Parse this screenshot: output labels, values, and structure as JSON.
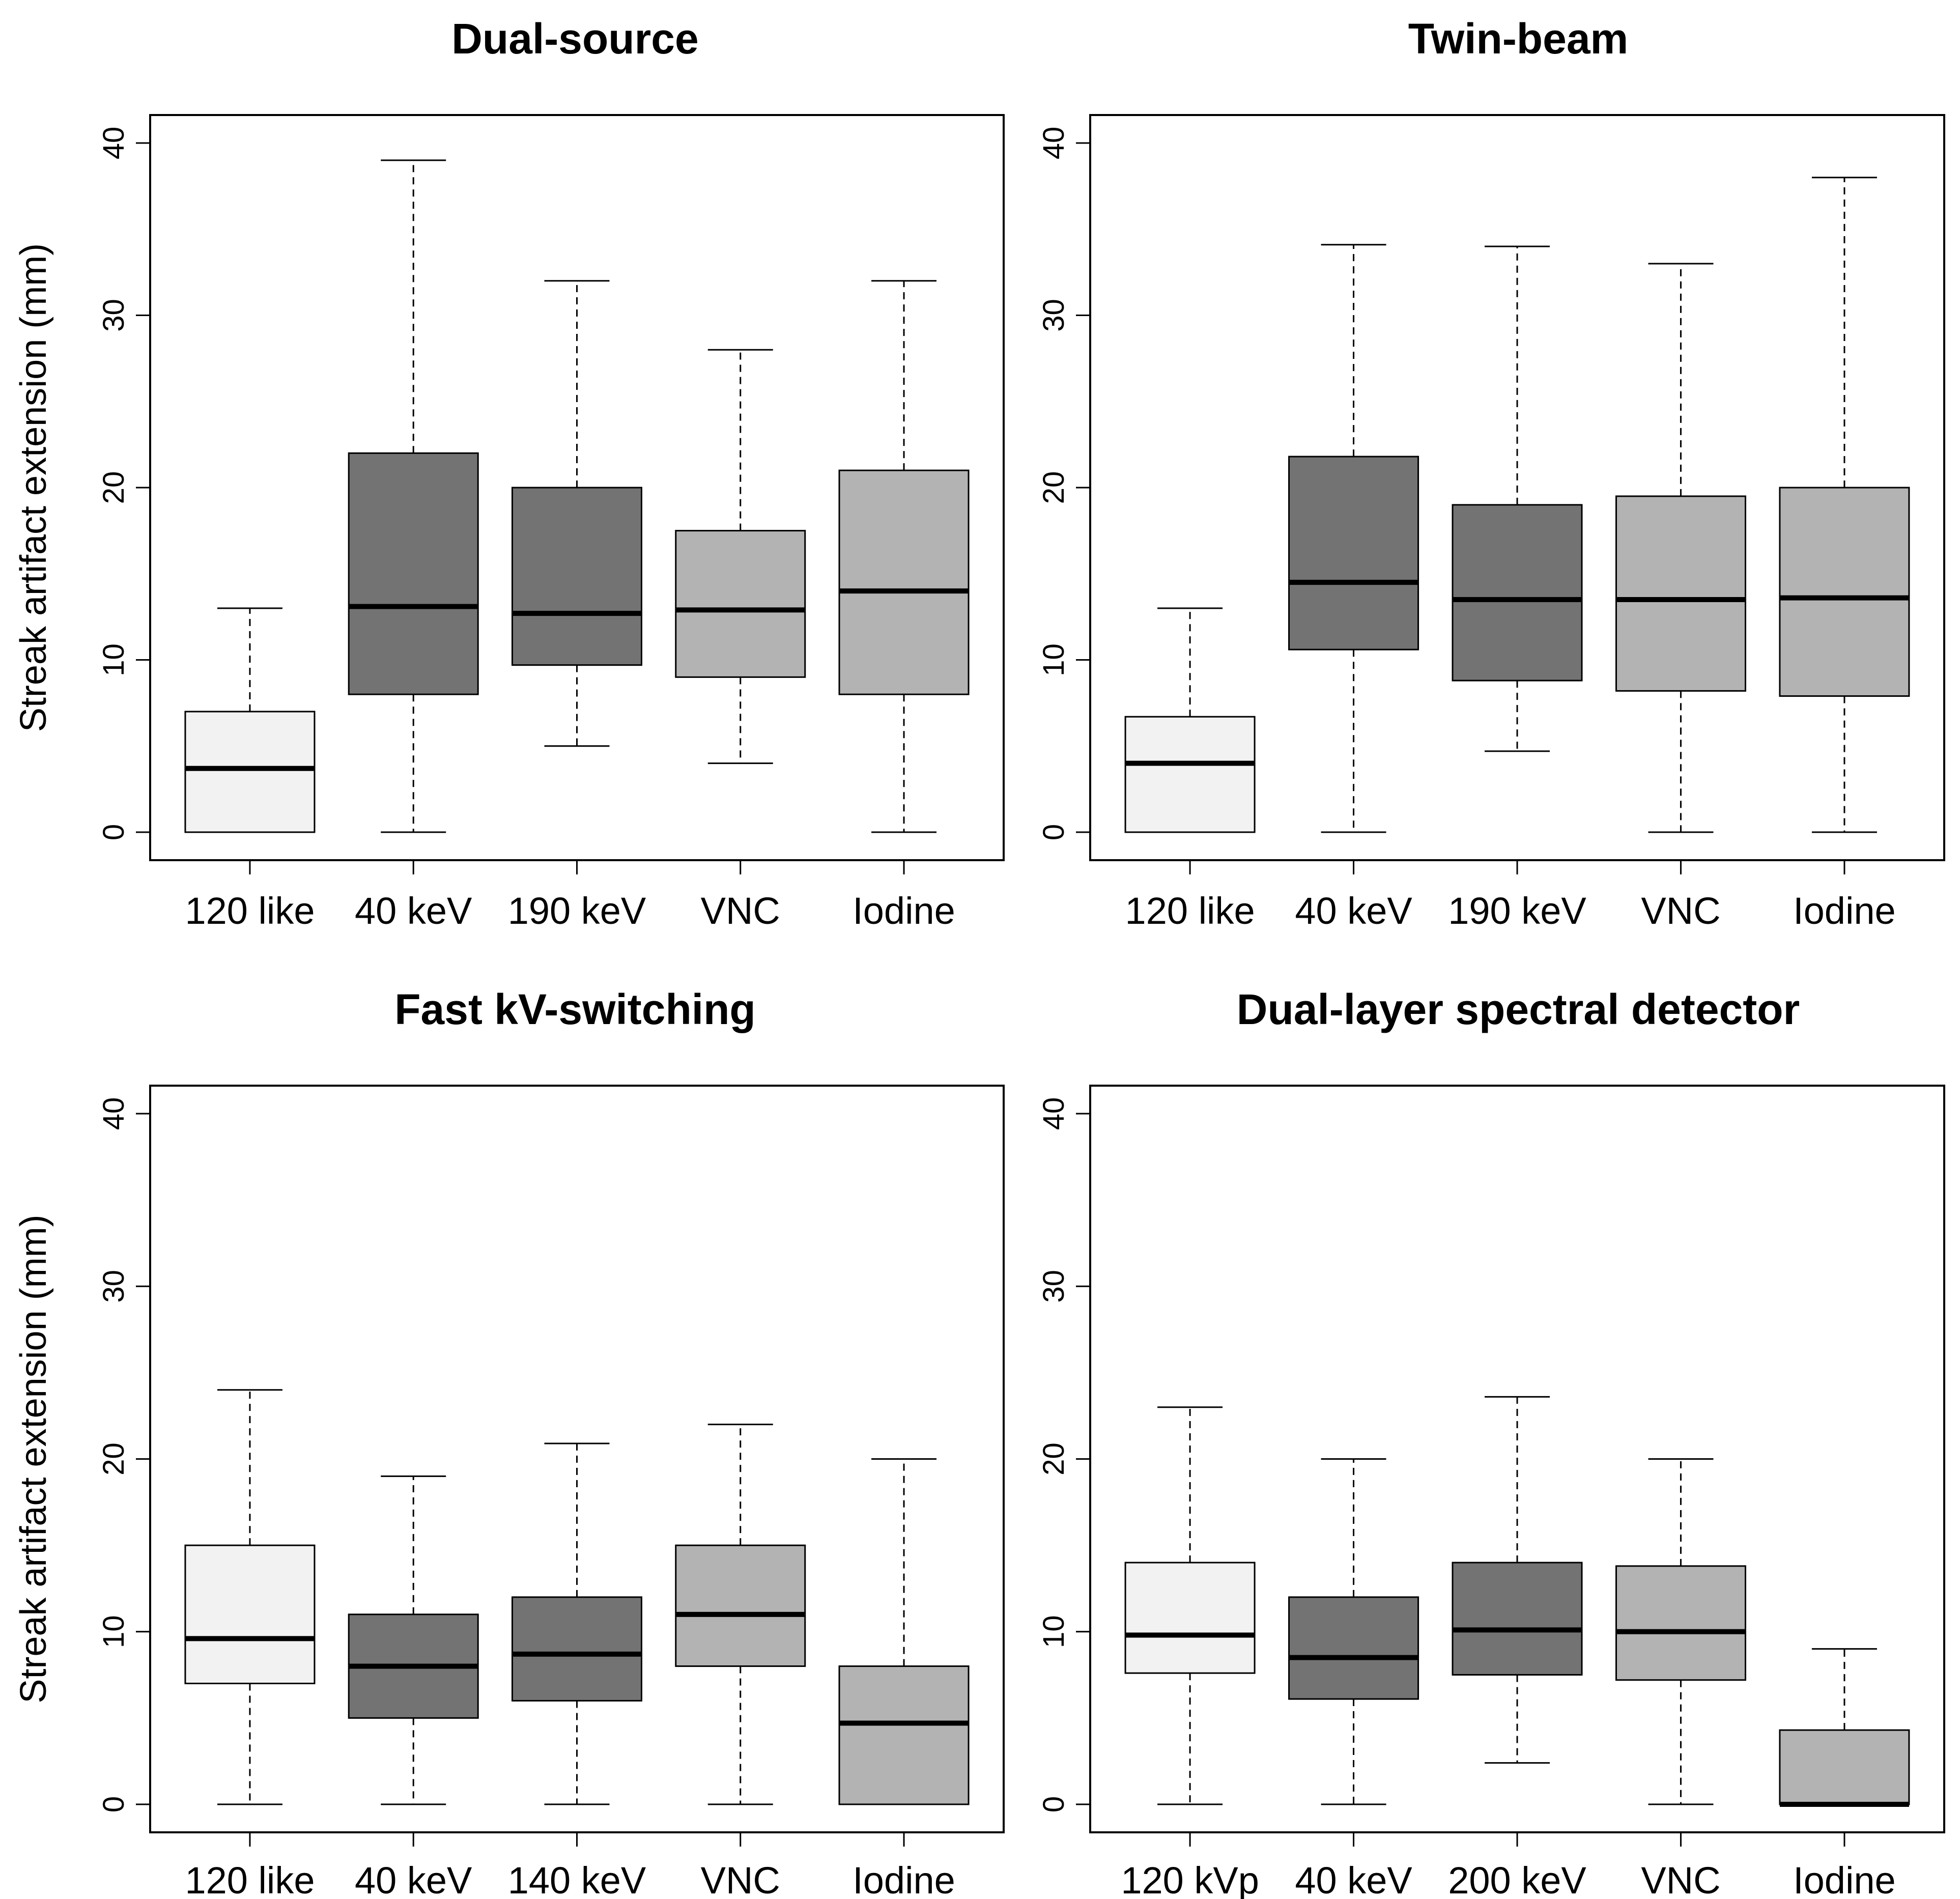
{
  "figure": {
    "ylabel": "Streak artifact extension (mm)",
    "yticks": [
      "0",
      "10",
      "20",
      "30",
      "40"
    ]
  },
  "chart_data": [
    {
      "type": "box",
      "title": "Dual-source",
      "ylabel": "Streak artifact extension (mm)",
      "ylim": [
        0,
        40
      ],
      "yticks": [
        0,
        10,
        20,
        30,
        40
      ],
      "categories": [
        "120 like",
        "40 keV",
        "190 keV",
        "VNC",
        "Iodine"
      ],
      "fill_colors": [
        "#f2f2f2",
        "#737373",
        "#737373",
        "#b3b3b3",
        "#b3b3b3"
      ],
      "boxes": [
        {
          "min": 0,
          "q1": 0,
          "median": 3.7,
          "q3": 7,
          "max": 13
        },
        {
          "min": 0,
          "q1": 8,
          "median": 13.1,
          "q3": 22,
          "max": 39
        },
        {
          "min": 5,
          "q1": 9.7,
          "median": 12.7,
          "q3": 20,
          "max": 32
        },
        {
          "min": 4,
          "q1": 9,
          "median": 12.9,
          "q3": 17.5,
          "max": 28
        },
        {
          "min": 0,
          "q1": 8,
          "median": 14,
          "q3": 21,
          "max": 32
        }
      ]
    },
    {
      "type": "box",
      "title": "Twin-beam",
      "ylabel": "",
      "ylim": [
        0,
        40
      ],
      "yticks": [
        0,
        10,
        20,
        30,
        40
      ],
      "categories": [
        "120 like",
        "40 keV",
        "190 keV",
        "VNC",
        "Iodine"
      ],
      "fill_colors": [
        "#f2f2f2",
        "#737373",
        "#737373",
        "#b3b3b3",
        "#b3b3b3"
      ],
      "boxes": [
        {
          "min": 0,
          "q1": 0,
          "median": 4,
          "q3": 6.7,
          "max": 13
        },
        {
          "min": 0,
          "q1": 10.6,
          "median": 14.5,
          "q3": 21.8,
          "max": 34.1
        },
        {
          "min": 4.7,
          "q1": 8.8,
          "median": 13.5,
          "q3": 19,
          "max": 34
        },
        {
          "min": 0,
          "q1": 8.2,
          "median": 13.5,
          "q3": 19.5,
          "max": 33
        },
        {
          "min": 0,
          "q1": 7.9,
          "median": 13.6,
          "q3": 20,
          "max": 38
        }
      ]
    },
    {
      "type": "box",
      "title": "Fast kV-switching",
      "ylabel": "Streak artifact extension (mm)",
      "ylim": [
        0,
        40
      ],
      "yticks": [
        0,
        10,
        20,
        30,
        40
      ],
      "categories": [
        "120 like",
        "40 keV",
        "140 keV",
        "VNC",
        "Iodine"
      ],
      "fill_colors": [
        "#f2f2f2",
        "#737373",
        "#737373",
        "#b3b3b3",
        "#b3b3b3"
      ],
      "boxes": [
        {
          "min": 0,
          "q1": 7,
          "median": 9.6,
          "q3": 15,
          "max": 24
        },
        {
          "min": 0,
          "q1": 5,
          "median": 8,
          "q3": 11,
          "max": 19
        },
        {
          "min": 0,
          "q1": 6,
          "median": 8.7,
          "q3": 12,
          "max": 20.9
        },
        {
          "min": 0,
          "q1": 8,
          "median": 11,
          "q3": 15,
          "max": 22
        },
        {
          "min": 0,
          "q1": 0,
          "median": 4.7,
          "q3": 8,
          "max": 20
        }
      ]
    },
    {
      "type": "box",
      "title": "Dual-layer spectral detector",
      "ylabel": "",
      "ylim": [
        0,
        40
      ],
      "yticks": [
        0,
        10,
        20,
        30,
        40
      ],
      "categories": [
        "120 kVp",
        "40 keV",
        "200 keV",
        "VNC",
        "Iodine"
      ],
      "fill_colors": [
        "#f2f2f2",
        "#737373",
        "#737373",
        "#b3b3b3",
        "#b3b3b3"
      ],
      "boxes": [
        {
          "min": 0,
          "q1": 7.6,
          "median": 9.8,
          "q3": 14,
          "max": 23
        },
        {
          "min": 0,
          "q1": 6.1,
          "median": 8.5,
          "q3": 12,
          "max": 20
        },
        {
          "min": 2.4,
          "q1": 7.5,
          "median": 10.1,
          "q3": 14,
          "max": 23.6
        },
        {
          "min": 0,
          "q1": 7.2,
          "median": 10,
          "q3": 13.8,
          "max": 20
        },
        {
          "min": 0,
          "q1": 0,
          "median": 0,
          "q3": 4.3,
          "max": 9
        }
      ]
    }
  ]
}
